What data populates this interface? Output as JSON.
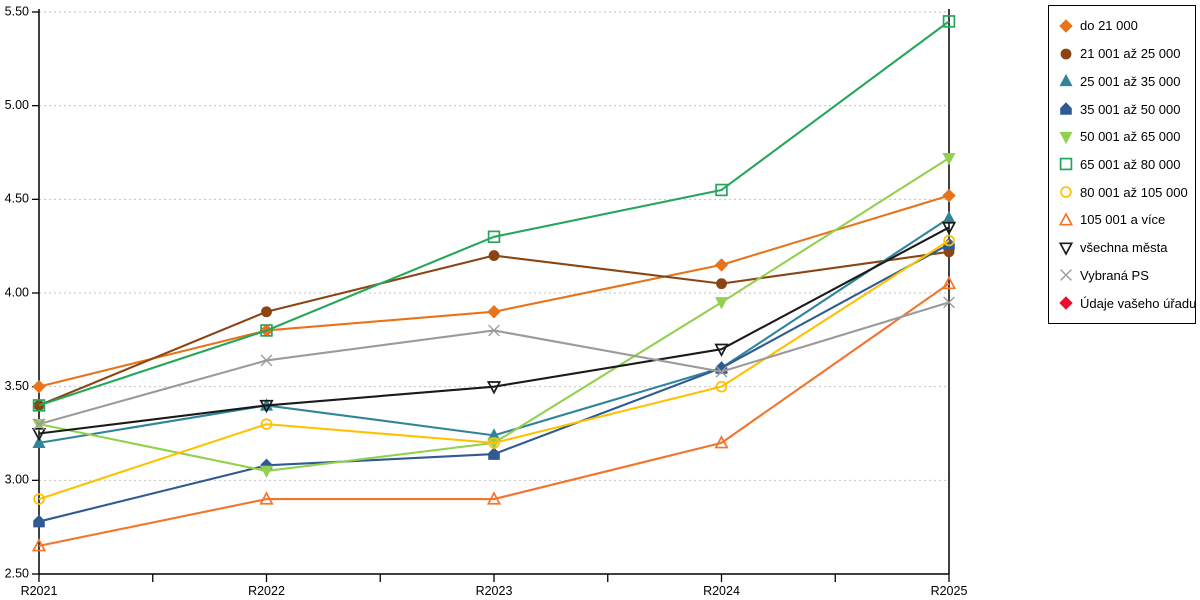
{
  "chart_data": {
    "type": "line",
    "categories": [
      "R2021",
      "R2022",
      "R2023",
      "R2024",
      "R2025"
    ],
    "ylim": [
      2.5,
      5.5
    ],
    "ytick_step": 0.5,
    "ytick_labels": [
      "2.50",
      "3.00",
      "3.50",
      "4.00",
      "4.50",
      "5.00",
      "5.50"
    ],
    "grid": "horizontal-dashed",
    "legend_position": "right-outside",
    "axis_color": "#000000",
    "grid_color": "#c2c2c2",
    "series": [
      {
        "name": "do 21 000",
        "color": "#E8731A",
        "marker": "diamond",
        "fill": "solid",
        "values": [
          3.5,
          3.8,
          3.9,
          4.15,
          4.52
        ]
      },
      {
        "name": "21 001 až 25 000",
        "color": "#8B4513",
        "marker": "circle",
        "fill": "solid",
        "values": [
          3.4,
          3.9,
          4.2,
          4.05,
          4.22
        ]
      },
      {
        "name": "25 001 až 35 000",
        "color": "#31849B",
        "marker": "triangle-up",
        "fill": "solid",
        "values": [
          3.2,
          3.4,
          3.24,
          3.6,
          4.4
        ]
      },
      {
        "name": "35 001 až 50 000",
        "color": "#2F5B93",
        "marker": "pentagon",
        "fill": "solid",
        "values": [
          2.78,
          3.08,
          3.14,
          3.6,
          4.26
        ]
      },
      {
        "name": "50 001 až 65 000",
        "color": "#92D050",
        "marker": "triangle-down",
        "fill": "solid",
        "values": [
          3.3,
          3.05,
          3.2,
          3.95,
          4.72
        ]
      },
      {
        "name": "65 001 až 80 000",
        "color": "#26A65B",
        "marker": "square",
        "fill": "open",
        "values": [
          3.4,
          3.8,
          4.3,
          4.55,
          5.45
        ]
      },
      {
        "name": "80 001 až 105 000",
        "color": "#FFC000",
        "marker": "circle",
        "fill": "open",
        "values": [
          2.9,
          3.3,
          3.2,
          3.5,
          4.28
        ]
      },
      {
        "name": "105 001 a více",
        "color": "#F4742B",
        "marker": "triangle-up",
        "fill": "open",
        "values": [
          2.65,
          2.9,
          2.9,
          3.2,
          4.05
        ]
      },
      {
        "name": "všechna města",
        "color": "#1A1A1A",
        "marker": "triangle-down",
        "fill": "open",
        "values": [
          3.25,
          3.4,
          3.5,
          3.7,
          4.35
        ]
      },
      {
        "name": "Vybraná PS",
        "color": "#9B9B9B",
        "marker": "x",
        "fill": "open",
        "values": [
          3.3,
          3.64,
          3.8,
          3.58,
          3.95
        ]
      },
      {
        "name": "Údaje vašeho úřadu",
        "color": "#E8112D",
        "marker": "diamond",
        "fill": "solid",
        "values": []
      }
    ]
  }
}
